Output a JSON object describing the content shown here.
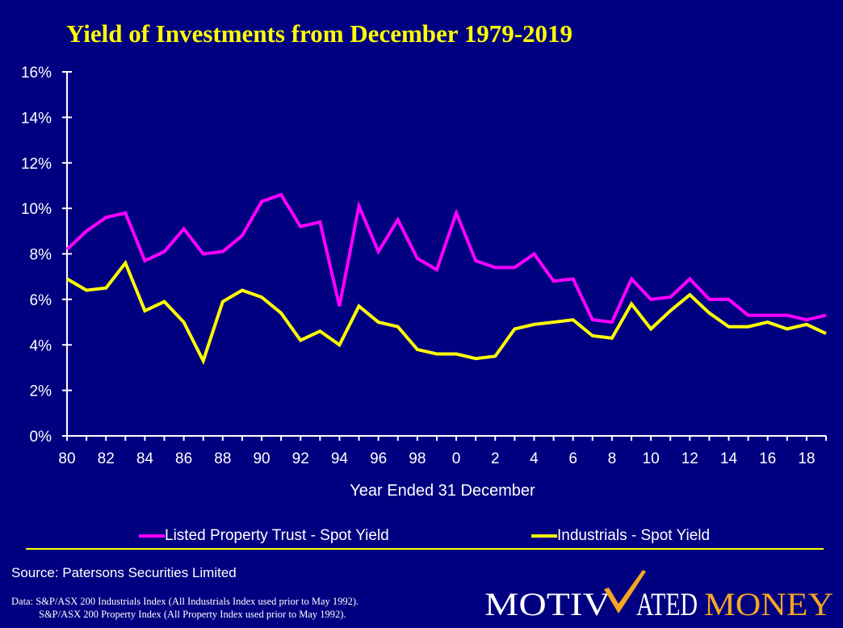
{
  "chart_data": {
    "type": "line",
    "title": "Yield of Investments from December 1979-2019",
    "xlabel": "Year Ended 31 December",
    "ylabel": "",
    "ylim": [
      0,
      16
    ],
    "yticks": [
      "0%",
      "2%",
      "4%",
      "6%",
      "8%",
      "10%",
      "12%",
      "14%",
      "16%"
    ],
    "xticks": [
      "80",
      "82",
      "84",
      "86",
      "88",
      "90",
      "92",
      "94",
      "96",
      "98",
      "0",
      "2",
      "4",
      "6",
      "8",
      "10",
      "12",
      "14",
      "16",
      "18"
    ],
    "x": [
      1980,
      1981,
      1982,
      1983,
      1984,
      1985,
      1986,
      1987,
      1988,
      1989,
      1990,
      1991,
      1992,
      1993,
      1994,
      1995,
      1996,
      1997,
      1998,
      1999,
      2000,
      2001,
      2002,
      2003,
      2004,
      2005,
      2006,
      2007,
      2008,
      2009,
      2010,
      2011,
      2012,
      2013,
      2014,
      2015,
      2016,
      2017,
      2018,
      2019
    ],
    "series": [
      {
        "name": "Listed Property Trust - Spot Yield",
        "color": "#ff00ff",
        "values": [
          8.2,
          9.0,
          9.6,
          9.8,
          7.7,
          8.1,
          9.1,
          8.0,
          8.1,
          8.8,
          10.3,
          10.6,
          9.2,
          9.4,
          5.7,
          10.1,
          8.1,
          9.5,
          7.8,
          7.3,
          9.8,
          7.7,
          7.4,
          7.4,
          8.0,
          6.8,
          6.9,
          5.1,
          5.0,
          6.9,
          6.0,
          6.1,
          6.9,
          6.0,
          6.0,
          5.3,
          5.3,
          5.3,
          5.1,
          5.3
        ]
      },
      {
        "name": "Industrials - Spot Yield",
        "color": "#ffff00",
        "values": [
          6.9,
          6.4,
          6.5,
          7.6,
          5.5,
          5.9,
          5.0,
          3.3,
          5.9,
          6.4,
          6.1,
          5.4,
          4.2,
          4.6,
          4.0,
          5.7,
          5.0,
          4.8,
          3.8,
          3.6,
          3.6,
          3.4,
          3.5,
          4.7,
          4.9,
          5.0,
          5.1,
          4.4,
          4.3,
          5.8,
          4.7,
          5.5,
          6.2,
          5.4,
          4.8,
          4.8,
          5.0,
          4.7,
          4.9,
          4.5
        ]
      }
    ]
  },
  "legend": {
    "lpt_label": "Listed Property Trust - Spot Yield",
    "ind_label": "Industrials - Spot Yield"
  },
  "source": "Source: Patersons Securities Limited",
  "data_notes": [
    "Data: S&P/ASX 200 Industrials Index (All Industrials Index used prior to May 1992).",
    "S&P/ASX 200 Property Index (All Property Index used prior to May 1992)."
  ],
  "logo": {
    "text_motiv": "MOTIV",
    "text_ated": "ATED",
    "text_money": "MONEY"
  }
}
